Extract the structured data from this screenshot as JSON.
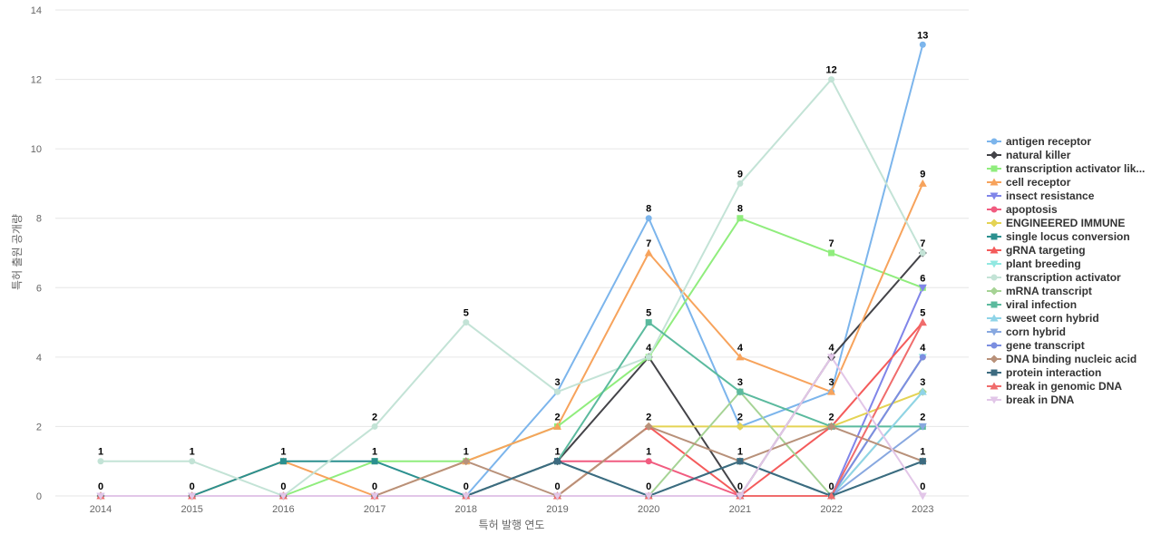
{
  "chart_data": {
    "type": "line",
    "x": [
      "2014",
      "2015",
      "2016",
      "2017",
      "2018",
      "2019",
      "2020",
      "2021",
      "2022",
      "2023"
    ],
    "xlabel": "특허 발행 연도",
    "ylabel": "특허 출원 공개량",
    "ylim": [
      0,
      14
    ],
    "yticks": [
      0,
      2,
      4,
      6,
      8,
      10,
      12,
      14
    ],
    "grid": "horizontal",
    "legend_position": "right",
    "series": [
      {
        "name": "antigen receptor",
        "color": "#7cb5ec",
        "marker": "circle",
        "values": [
          0,
          0,
          0,
          0,
          0,
          3,
          8,
          2,
          3,
          13
        ]
      },
      {
        "name": "natural killer",
        "color": "#434348",
        "marker": "diamond",
        "values": [
          0,
          0,
          0,
          0,
          0,
          1,
          4,
          0,
          4,
          7
        ]
      },
      {
        "name": "transcription activator lik...",
        "color": "#90ed7d",
        "marker": "square",
        "values": [
          0,
          0,
          0,
          1,
          1,
          2,
          4,
          8,
          7,
          6
        ]
      },
      {
        "name": "cell receptor",
        "color": "#f7a35c",
        "marker": "triangle",
        "values": [
          0,
          0,
          1,
          0,
          1,
          2,
          7,
          4,
          3,
          9
        ]
      },
      {
        "name": "insect resistance",
        "color": "#8085e9",
        "marker": "triangle-down",
        "values": [
          0,
          0,
          0,
          0,
          0,
          0,
          0,
          0,
          0,
          6
        ]
      },
      {
        "name": "apoptosis",
        "color": "#f15c80",
        "marker": "circle",
        "values": [
          0,
          0,
          0,
          0,
          0,
          1,
          1,
          0,
          0,
          4
        ]
      },
      {
        "name": "ENGINEERED IMMUNE",
        "color": "#e4d354",
        "marker": "diamond",
        "values": [
          0,
          0,
          0,
          0,
          0,
          0,
          2,
          2,
          2,
          3
        ]
      },
      {
        "name": "single locus conversion",
        "color": "#2b908f",
        "marker": "square",
        "values": [
          0,
          0,
          1,
          1,
          0,
          1,
          0,
          1,
          0,
          1
        ]
      },
      {
        "name": "gRNA targeting",
        "color": "#f45b5b",
        "marker": "triangle",
        "values": [
          0,
          0,
          0,
          0,
          0,
          0,
          2,
          0,
          2,
          5
        ]
      },
      {
        "name": "plant breeding",
        "color": "#91e8e1",
        "marker": "triangle-down",
        "values": [
          0,
          0,
          0,
          0,
          0,
          0,
          0,
          0,
          0,
          4
        ]
      },
      {
        "name": "transcription activator",
        "color": "#c3e3d6",
        "marker": "circle",
        "values": [
          1,
          1,
          0,
          2,
          5,
          3,
          4,
          9,
          12,
          7
        ]
      },
      {
        "name": "mRNA transcript",
        "color": "#a6d395",
        "marker": "diamond",
        "values": [
          0,
          0,
          0,
          0,
          0,
          0,
          0,
          3,
          0,
          3
        ]
      },
      {
        "name": "viral infection",
        "color": "#5bba9e",
        "marker": "square",
        "values": [
          0,
          0,
          0,
          0,
          0,
          1,
          5,
          3,
          2,
          2
        ]
      },
      {
        "name": "sweet corn hybrid",
        "color": "#8fd4e8",
        "marker": "triangle",
        "values": [
          0,
          0,
          0,
          0,
          0,
          0,
          0,
          0,
          0,
          3
        ]
      },
      {
        "name": "corn hybrid",
        "color": "#88a8e0",
        "marker": "triangle-down",
        "values": [
          0,
          0,
          0,
          0,
          0,
          0,
          0,
          0,
          0,
          2
        ]
      },
      {
        "name": "gene transcript",
        "color": "#7b8ee0",
        "marker": "circle",
        "values": [
          0,
          0,
          0,
          0,
          0,
          0,
          0,
          0,
          0,
          4
        ]
      },
      {
        "name": "DNA binding nucleic acid",
        "color": "#b8917a",
        "marker": "diamond",
        "values": [
          0,
          0,
          0,
          0,
          1,
          0,
          2,
          1,
          2,
          1
        ]
      },
      {
        "name": "protein interaction",
        "color": "#3d6b80",
        "marker": "square",
        "values": [
          0,
          0,
          0,
          0,
          0,
          1,
          0,
          1,
          0,
          1
        ]
      },
      {
        "name": "break in genomic DNA",
        "color": "#f06c6c",
        "marker": "triangle",
        "values": [
          0,
          0,
          0,
          0,
          0,
          0,
          0,
          0,
          0,
          5
        ]
      },
      {
        "name": "break in DNA",
        "color": "#e2c6e8",
        "marker": "triangle-down",
        "values": [
          0,
          0,
          0,
          0,
          0,
          0,
          0,
          0,
          4,
          0
        ]
      }
    ],
    "data_labels": [
      {
        "x": "2014",
        "value": 1
      },
      {
        "x": "2014",
        "value": 0
      },
      {
        "x": "2015",
        "value": 1
      },
      {
        "x": "2015",
        "value": 0
      },
      {
        "x": "2016",
        "value": 1
      },
      {
        "x": "2016",
        "value": 0
      },
      {
        "x": "2017",
        "value": 2
      },
      {
        "x": "2017",
        "value": 1
      },
      {
        "x": "2017",
        "value": 0
      },
      {
        "x": "2018",
        "value": 5
      },
      {
        "x": "2018",
        "value": 1
      },
      {
        "x": "2018",
        "value": 0
      },
      {
        "x": "2019",
        "value": 3
      },
      {
        "x": "2019",
        "value": 2
      },
      {
        "x": "2019",
        "value": 1
      },
      {
        "x": "2019",
        "value": 0
      },
      {
        "x": "2020",
        "value": 8
      },
      {
        "x": "2020",
        "value": 7
      },
      {
        "x": "2020",
        "value": 5
      },
      {
        "x": "2020",
        "value": 4
      },
      {
        "x": "2020",
        "value": 2
      },
      {
        "x": "2020",
        "value": 1
      },
      {
        "x": "2020",
        "value": 0
      },
      {
        "x": "2021",
        "value": 9
      },
      {
        "x": "2021",
        "value": 8
      },
      {
        "x": "2021",
        "value": 4
      },
      {
        "x": "2021",
        "value": 3
      },
      {
        "x": "2021",
        "value": 2
      },
      {
        "x": "2021",
        "value": 1
      },
      {
        "x": "2021",
        "value": 0
      },
      {
        "x": "2022",
        "value": 12
      },
      {
        "x": "2022",
        "value": 7
      },
      {
        "x": "2022",
        "value": 4
      },
      {
        "x": "2022",
        "value": 3
      },
      {
        "x": "2022",
        "value": 2
      },
      {
        "x": "2022",
        "value": 0
      },
      {
        "x": "2023",
        "value": 13
      },
      {
        "x": "2023",
        "value": 9
      },
      {
        "x": "2023",
        "value": 7
      },
      {
        "x": "2023",
        "value": 6
      },
      {
        "x": "2023",
        "value": 5
      },
      {
        "x": "2023",
        "value": 4
      },
      {
        "x": "2023",
        "value": 3
      },
      {
        "x": "2023",
        "value": 2
      },
      {
        "x": "2023",
        "value": 1
      },
      {
        "x": "2023",
        "value": 0
      }
    ]
  }
}
